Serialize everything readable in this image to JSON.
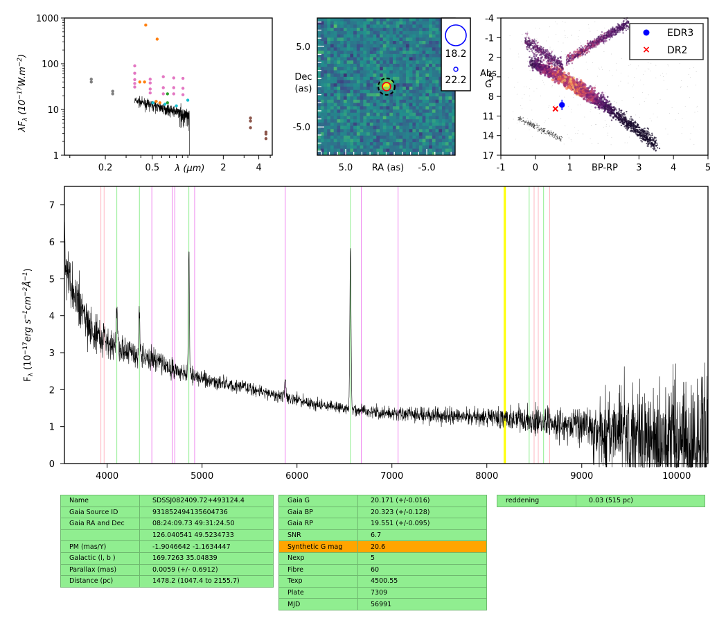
{
  "chart_data": [
    {
      "type": "scatter",
      "name": "sed",
      "xlabel": "λ (μm)",
      "ylabel": "λF_λ (10^-17 W.m^-2)",
      "x_scale": "log",
      "y_scale": "log",
      "xlim": [
        0.09,
        5.2
      ],
      "ylim": [
        1,
        1000
      ],
      "x_ticks": [
        0.2,
        0.5,
        2,
        4
      ],
      "y_ticks": [
        "1",
        "10",
        "100",
        "1000"
      ],
      "points": [
        {
          "x": 0.152,
          "y": 46,
          "c": "#7f7f7f"
        },
        {
          "x": 0.152,
          "y": 40,
          "c": "#7f7f7f"
        },
        {
          "x": 0.231,
          "y": 25,
          "c": "#7f7f7f"
        },
        {
          "x": 0.231,
          "y": 22,
          "c": "#7f7f7f"
        },
        {
          "x": 0.355,
          "y": 90,
          "c": "#e377c2"
        },
        {
          "x": 0.355,
          "y": 62,
          "c": "#e377c2"
        },
        {
          "x": 0.355,
          "y": 45,
          "c": "#e377c2"
        },
        {
          "x": 0.355,
          "y": 37,
          "c": "#e377c2"
        },
        {
          "x": 0.355,
          "y": 31,
          "c": "#e377c2"
        },
        {
          "x": 0.392,
          "y": 40,
          "c": "#ff7f0e"
        },
        {
          "x": 0.43,
          "y": 40,
          "c": "#ff7f0e"
        },
        {
          "x": 0.44,
          "y": 700,
          "c": "#ff7f0e"
        },
        {
          "x": 0.55,
          "y": 345,
          "c": "#ff7f0e"
        },
        {
          "x": 0.48,
          "y": 46,
          "c": "#e377c2"
        },
        {
          "x": 0.48,
          "y": 38,
          "c": "#e377c2"
        },
        {
          "x": 0.48,
          "y": 28,
          "c": "#e377c2"
        },
        {
          "x": 0.48,
          "y": 23,
          "c": "#e377c2"
        },
        {
          "x": 0.62,
          "y": 52,
          "c": "#e377c2"
        },
        {
          "x": 0.62,
          "y": 30,
          "c": "#e377c2"
        },
        {
          "x": 0.62,
          "y": 22,
          "c": "#e377c2"
        },
        {
          "x": 0.76,
          "y": 49,
          "c": "#e377c2"
        },
        {
          "x": 0.76,
          "y": 30,
          "c": "#e377c2"
        },
        {
          "x": 0.76,
          "y": 22,
          "c": "#e377c2"
        },
        {
          "x": 0.91,
          "y": 48,
          "c": "#e377c2"
        },
        {
          "x": 0.91,
          "y": 29,
          "c": "#e377c2"
        },
        {
          "x": 0.91,
          "y": 21,
          "c": "#e377c2"
        },
        {
          "x": 0.673,
          "y": 22,
          "c": "#2ca02c"
        },
        {
          "x": 0.673,
          "y": 14,
          "c": "#2ca02c"
        },
        {
          "x": 0.505,
          "y": 14,
          "c": "#17becf"
        },
        {
          "x": 0.64,
          "y": 13,
          "c": "#17becf"
        },
        {
          "x": 0.8,
          "y": 12,
          "c": "#17becf"
        },
        {
          "x": 1.0,
          "y": 16,
          "c": "#17becf"
        },
        {
          "x": 0.54,
          "y": 15,
          "c": "#ff7f0e"
        },
        {
          "x": 0.58,
          "y": 14,
          "c": "#ff7f0e"
        },
        {
          "x": 3.4,
          "y": 6.5,
          "c": "#8c564b"
        },
        {
          "x": 3.4,
          "y": 5.6,
          "c": "#8c564b"
        },
        {
          "x": 3.4,
          "y": 4.0,
          "c": "#8c564b"
        },
        {
          "x": 4.6,
          "y": 3.2,
          "c": "#8c564b"
        },
        {
          "x": 4.6,
          "y": 2.9,
          "c": "#8c564b"
        },
        {
          "x": 4.6,
          "y": 2.3,
          "c": "#8c564b"
        }
      ]
    },
    {
      "type": "heatmap",
      "name": "image",
      "xlabel": "RA (as)",
      "ylabel": "Dec\n(as)",
      "xlim": [
        8.5,
        -8.5
      ],
      "ylim": [
        -8.5,
        8.5
      ],
      "x_ticks": [
        5.0,
        -5.0
      ],
      "y_ticks": [
        5.0,
        -5.0
      ],
      "x_tick_labels": [
        "5.0",
        "-5.0"
      ],
      "y_tick_labels": [
        "5.0",
        "-5.0"
      ],
      "legend": [
        {
          "label": "18.2"
        },
        {
          "label": "22.2"
        }
      ]
    },
    {
      "type": "scatter",
      "name": "hrd",
      "xlabel": "BP-RP",
      "ylabel": "Abs\nG",
      "xlim": [
        -1,
        5
      ],
      "ylim": [
        17,
        -4
      ],
      "x_ticks": [
        "-1",
        "0",
        "1",
        "3",
        "4",
        "5"
      ],
      "y_ticks": [
        "-4",
        "-1",
        "2",
        "5",
        "8",
        "11",
        "14",
        "17"
      ],
      "legend": [
        {
          "label": "EDR3",
          "color": "#0000ff"
        },
        {
          "label": "DR2",
          "color": "#ff0000"
        }
      ],
      "points": [
        {
          "series": "EDR3",
          "x": 0.77,
          "y": 9.3,
          "yerr": 0.8
        },
        {
          "series": "DR2",
          "x": 0.58,
          "y": 9.9
        }
      ]
    },
    {
      "type": "line",
      "name": "spectrum",
      "xlabel": "",
      "ylabel": "F_λ (10^-17 erg s^-1 cm^-2 Å^-1)",
      "xlim": [
        3550,
        10330
      ],
      "ylim": [
        0,
        7.5
      ],
      "x_ticks": [
        4000,
        5000,
        6000,
        7000,
        8000,
        9000,
        10000
      ],
      "y_ticks": [
        0,
        1,
        2,
        3,
        4,
        5,
        6,
        7
      ],
      "continuum": [
        [
          3560,
          5.6
        ],
        [
          3600,
          5.0
        ],
        [
          3650,
          4.6
        ],
        [
          3700,
          4.3
        ],
        [
          3800,
          3.8
        ],
        [
          3900,
          3.4
        ],
        [
          4000,
          3.25
        ],
        [
          4200,
          3.0
        ],
        [
          4500,
          2.8
        ],
        [
          4800,
          2.45
        ],
        [
          5000,
          2.3
        ],
        [
          5400,
          2.08
        ],
        [
          5800,
          1.85
        ],
        [
          6200,
          1.6
        ],
        [
          6500,
          1.48
        ],
        [
          7000,
          1.36
        ],
        [
          7500,
          1.3
        ],
        [
          8000,
          1.25
        ],
        [
          8500,
          1.15
        ],
        [
          8800,
          1.05
        ],
        [
          9000,
          0.95
        ],
        [
          9300,
          0.85
        ],
        [
          9600,
          0.7
        ],
        [
          10000,
          0.6
        ],
        [
          10330,
          0.55
        ]
      ],
      "emission": [
        [
          3970,
          0.5,
          8
        ],
        [
          4102,
          1.2,
          8
        ],
        [
          4340,
          1.3,
          8
        ],
        [
          4861,
          3.3,
          8
        ],
        [
          5876,
          0.5,
          10
        ],
        [
          6563,
          4.4,
          9
        ]
      ],
      "noise": [
        [
          3550,
          0.55
        ],
        [
          4000,
          0.3
        ],
        [
          5000,
          0.15
        ],
        [
          6500,
          0.11
        ],
        [
          8000,
          0.18
        ],
        [
          9000,
          0.35
        ],
        [
          9300,
          0.9
        ],
        [
          10000,
          1.3
        ],
        [
          10330,
          1.5
        ]
      ],
      "vlines": [
        {
          "x": 3934,
          "c": "#ffb6c1"
        },
        {
          "x": 3968,
          "c": "#ffb6c1"
        },
        {
          "x": 4102,
          "c": "#90ee90"
        },
        {
          "x": 4340,
          "c": "#90ee90"
        },
        {
          "x": 4471,
          "c": "#ee82ee"
        },
        {
          "x": 4686,
          "c": "#ee82ee"
        },
        {
          "x": 4713,
          "c": "#ee82ee"
        },
        {
          "x": 4861,
          "c": "#90ee90"
        },
        {
          "x": 4922,
          "c": "#ee82ee"
        },
        {
          "x": 5876,
          "c": "#ee82ee"
        },
        {
          "x": 6563,
          "c": "#90ee90"
        },
        {
          "x": 6678,
          "c": "#ee82ee"
        },
        {
          "x": 7065,
          "c": "#ee82ee"
        },
        {
          "x": 8183,
          "c": "#ffff00"
        },
        {
          "x": 8195,
          "c": "#ffff00"
        },
        {
          "x": 8446,
          "c": "#90ee90"
        },
        {
          "x": 8498,
          "c": "#ffb6c1"
        },
        {
          "x": 8542,
          "c": "#ffb6c1"
        },
        {
          "x": 8598,
          "c": "#90ee90"
        },
        {
          "x": 8662,
          "c": "#ffb6c1"
        }
      ]
    }
  ],
  "tables": {
    "identity": [
      {
        "k": "Name",
        "v": "SDSSJ082409.72+493124.4"
      },
      {
        "k": "Gaia Source ID",
        "v": "931852494135604736"
      },
      {
        "k": "Gaia RA and Dec",
        "v": "08:24:09.73    49:31:24.50"
      },
      {
        "k": "",
        "v": "126.040541    49.5234733"
      },
      {
        "k": "PM (mas/Y)",
        "v": "-1.9046642    -1.1634447"
      },
      {
        "k": "Galactic (l, b )",
        "v": "169.7263    35.04839"
      },
      {
        "k": "Parallax (mas)",
        "v": "0.0059 (+/- 0.6912)"
      },
      {
        "k": "Distance (pc)",
        "v": "1478.2 (1047.4 to 2155.7)"
      }
    ],
    "photometry": [
      {
        "k": "Gaia G",
        "v": "20.171 (+/-0.016)"
      },
      {
        "k": "Gaia BP",
        "v": "20.323 (+/-0.128)"
      },
      {
        "k": "Gaia RP",
        "v": "19.551 (+/-0.095)"
      },
      {
        "k": "SNR",
        "v": "6.7"
      },
      {
        "k": "Synthetic G mag",
        "v": "20.6",
        "highlight": true
      },
      {
        "k": "Nexp",
        "v": "5"
      },
      {
        "k": "Fibre",
        "v": "60"
      },
      {
        "k": "Texp",
        "v": "4500.55"
      },
      {
        "k": "Plate",
        "v": "7309"
      },
      {
        "k": "MJD",
        "v": "56991"
      }
    ],
    "extinction": [
      {
        "k": "reddening",
        "v": "0.03 (515 pc)"
      }
    ]
  }
}
